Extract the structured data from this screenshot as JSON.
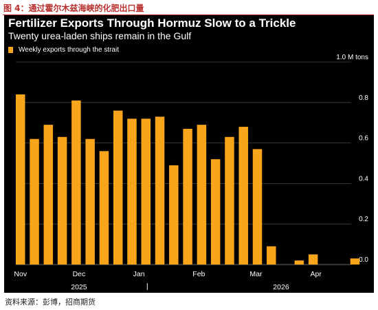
{
  "caption": "图 4：通过霍尔木兹海峡的化肥出口量",
  "source": "资料来源：彭博，招商期货",
  "colors": {
    "bar": "#f9a51b",
    "panel_background": "#000000",
    "caption_red": "#b8312f",
    "text": "#ffffff",
    "grid": "#444444"
  },
  "chart_data": {
    "type": "bar",
    "title": "Fertilizer Exports Through Hormuz Slow to a Trickle",
    "subtitle": "Twenty urea-laden ships remain in the Gulf",
    "series": [
      {
        "name": "Weekly exports through the strait",
        "values": [
          0.84,
          0.62,
          0.69,
          0.63,
          0.81,
          0.62,
          0.56,
          0.76,
          0.72,
          0.72,
          0.73,
          0.49,
          0.67,
          0.69,
          0.52,
          0.63,
          0.68,
          0.57,
          0.09,
          0.0,
          0.02,
          0.05,
          0.0,
          0.0,
          0.03,
          0.0
        ]
      }
    ],
    "y_unit_label": "1.0 M tons",
    "ylim": [
      0,
      1.0
    ],
    "yticks": [
      {
        "value": 0.0,
        "label": "0.0"
      },
      {
        "value": 0.2,
        "label": "0.2"
      },
      {
        "value": 0.4,
        "label": "0.4"
      },
      {
        "value": 0.6,
        "label": "0.6"
      },
      {
        "value": 0.8,
        "label": "0.8"
      },
      {
        "value": 1.0,
        "label": "1.0 M tons"
      }
    ],
    "x_month_ticks": [
      {
        "index": 0,
        "label": "Nov"
      },
      {
        "index": 4.2,
        "label": "Dec"
      },
      {
        "index": 8.5,
        "label": "Jan"
      },
      {
        "index": 12.8,
        "label": "Feb"
      },
      {
        "index": 16.9,
        "label": "Mar"
      },
      {
        "index": 21.2,
        "label": "Apr"
      }
    ],
    "x_year_labels": [
      {
        "index": 4.2,
        "label": "2025"
      },
      {
        "index": 18.7,
        "label": "2026"
      }
    ],
    "x_year_divider_index": 9.0,
    "grid": true,
    "legend_position": "top-left"
  }
}
